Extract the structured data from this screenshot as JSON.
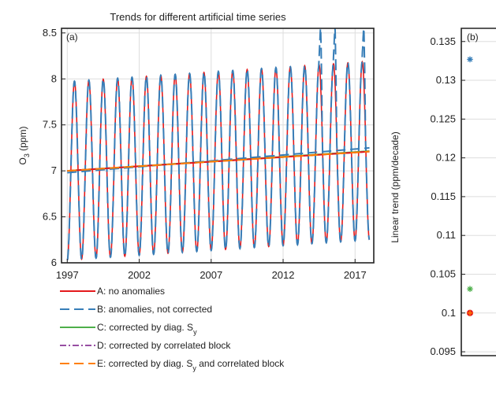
{
  "figure_title": "Trends for different artificial time series",
  "chart_data": [
    {
      "panel": "(a)",
      "type": "line",
      "title": "Trends for different artificial time series",
      "xlabel": "",
      "ylabel": "O3 (ppm)",
      "ylabel_main": "O",
      "ylabel_sub": "3",
      "ylabel_unit": " (ppm)",
      "xlim": [
        1996.6,
        2018.3
      ],
      "ylim": [
        6.0,
        8.55
      ],
      "x_ticks": [
        1997,
        2002,
        2007,
        2012,
        2017
      ],
      "y_ticks": [
        6,
        6.5,
        7,
        7.5,
        8,
        8.5
      ],
      "y_tick_labels": [
        "6",
        "6.5",
        "7",
        "7.5",
        "8",
        "8.5"
      ],
      "grid": true,
      "seasonal_signal": {
        "x_start": 1997,
        "x_end": 2018,
        "period_years": 1,
        "mean": 7.0,
        "amplitude": 0.97,
        "trend_per_year": 0.0105
      },
      "anomaly_spikes": [
        {
          "x": 2014.6,
          "y": 8.55
        },
        {
          "x": 2015.6,
          "y": 8.55
        },
        {
          "x": 2017.6,
          "y": 8.55
        }
      ],
      "trend_lines": [
        {
          "series": "A",
          "x": [
            1997,
            2018
          ],
          "y": [
            7.0,
            7.21
          ]
        },
        {
          "series": "B",
          "x": [
            1997,
            2018
          ],
          "y": [
            6.98,
            7.25
          ]
        },
        {
          "series": "C",
          "x": [
            1997,
            2018
          ],
          "y": [
            7.0,
            7.215
          ]
        },
        {
          "series": "D",
          "x": [
            1997,
            2018
          ],
          "y": [
            7.0,
            7.21
          ]
        },
        {
          "series": "E",
          "x": [
            1997,
            2018
          ],
          "y": [
            7.0,
            7.21
          ]
        }
      ],
      "series": [
        {
          "id": "A",
          "name": "A: no anomalies",
          "color": "#e41a1c",
          "dash": "solid"
        },
        {
          "id": "B",
          "name": "B: anomalies, not corrected",
          "color": "#377eb8",
          "dash": "dashed"
        },
        {
          "id": "C",
          "name": "C: corrected by diag. S",
          "name_sub": "y",
          "color": "#4daf4a",
          "dash": "solid"
        },
        {
          "id": "D",
          "name": "D: corrected by correlated block",
          "color": "#984ea3",
          "dash": "dashdot"
        },
        {
          "id": "E",
          "name": "E: corrected by diag. S",
          "name_sub": "y",
          "name_tail": " and correlated block",
          "color": "#ff7f00",
          "dash": "dashed"
        }
      ],
      "legend_position": "below"
    },
    {
      "panel": "(b)",
      "type": "scatter",
      "ylabel": "Linear trend (ppm/decade)",
      "ylim": [
        0.0945,
        0.1367
      ],
      "y_ticks": [
        0.095,
        0.1,
        0.105,
        0.11,
        0.115,
        0.12,
        0.125,
        0.13,
        0.135
      ],
      "y_tick_labels": [
        "0.095",
        "0.1",
        "0.105",
        "0.11",
        "0.115",
        "0.12",
        "0.125",
        "0.13",
        "0.135"
      ],
      "points": [
        {
          "series": "B",
          "y": 0.1327,
          "color": "#377eb8",
          "marker": "asterisk"
        },
        {
          "series": "C",
          "y": 0.1031,
          "color": "#4daf4a",
          "marker": "asterisk"
        },
        {
          "series": "A",
          "y": 0.1,
          "color": "#e41a1c",
          "marker": "circle"
        },
        {
          "series": "E",
          "y": 0.1,
          "color": "#ff7f00",
          "marker": "plus"
        }
      ]
    }
  ]
}
